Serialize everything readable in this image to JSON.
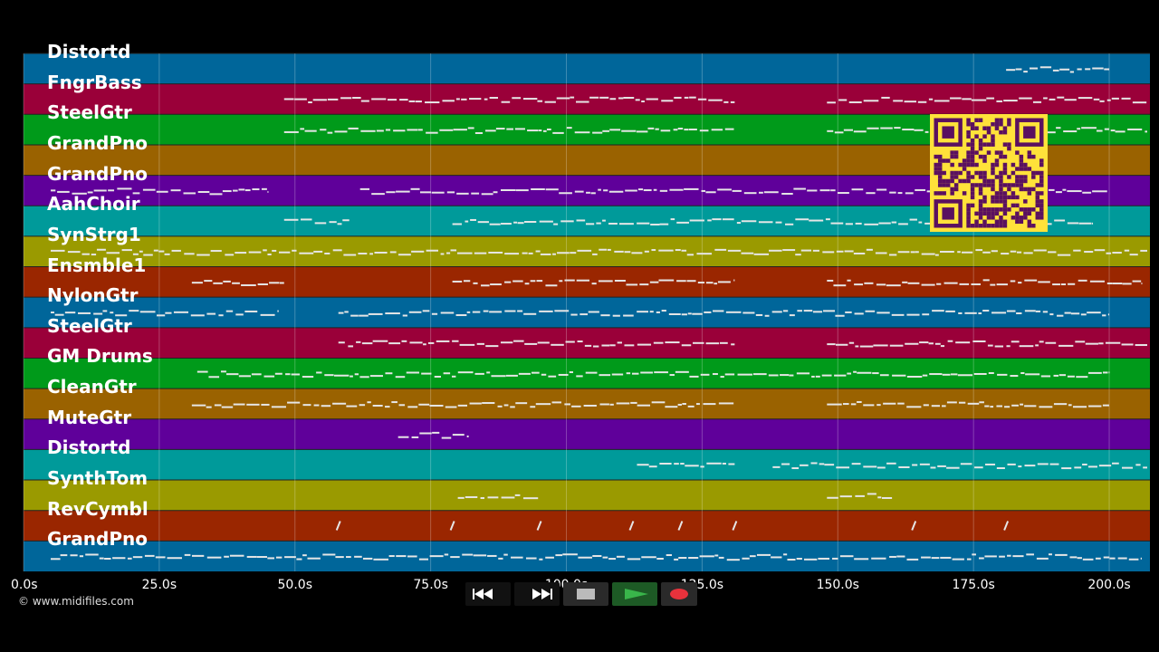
{
  "tracks": [
    {
      "name": "Distortd",
      "color": "#00669a"
    },
    {
      "name": "FngrBass",
      "color": "#9a0039"
    },
    {
      "name": "SteelGtr",
      "color": "#009a1a"
    },
    {
      "name": "GrandPno",
      "color": "#9a6200"
    },
    {
      "name": "GrandPno",
      "color": "#5f009a"
    },
    {
      "name": "AahChoir",
      "color": "#009a9a"
    },
    {
      "name": "SynStrg1",
      "color": "#9a9a00"
    },
    {
      "name": "Ensmble1",
      "color": "#9a2600"
    },
    {
      "name": "NylonGtr",
      "color": "#00669a"
    },
    {
      "name": "SteelGtr",
      "color": "#9a0039"
    },
    {
      "name": "GM Drums",
      "color": "#009a1a"
    },
    {
      "name": "CleanGtr",
      "color": "#9a6200"
    },
    {
      "name": "MuteGtr",
      "color": "#5f009a"
    },
    {
      "name": "Distortd",
      "color": "#009a9a"
    },
    {
      "name": "SynthTom",
      "color": "#9a9a00"
    },
    {
      "name": "RevCymbl",
      "color": "#9a2600"
    },
    {
      "name": "GrandPno",
      "color": "#00669a"
    }
  ],
  "time_axis": {
    "ticks": [
      "0.0s",
      "25.0s",
      "50.0s",
      "75.0s",
      "100.0s",
      "125.0s",
      "150.0s",
      "175.0s",
      "200.0s"
    ],
    "max_seconds": 207.5
  },
  "copyright": "© www.midifiles.com",
  "transport": {
    "rewind": "rewind-icon",
    "fast_forward": "fast-forward-icon",
    "stop": "stop-icon",
    "play": "play-icon",
    "record": "record-icon"
  },
  "colors": {
    "background": "#000000",
    "note": "#e6e6e6",
    "qr_bg": "#ffe23a",
    "qr_fg": "#5a1060",
    "play": "#39b54a",
    "record": "#e8323c"
  },
  "notes": [
    {
      "track": 0,
      "segments": [
        [
          181,
          200
        ]
      ]
    },
    {
      "track": 1,
      "segments": [
        [
          48,
          131
        ],
        [
          148,
          207
        ]
      ]
    },
    {
      "track": 2,
      "segments": [
        [
          48,
          131
        ],
        [
          148,
          207
        ]
      ]
    },
    {
      "track": 3,
      "segments": []
    },
    {
      "track": 4,
      "segments": [
        [
          5,
          45
        ],
        [
          62,
          200
        ]
      ]
    },
    {
      "track": 5,
      "segments": [
        [
          48,
          60
        ],
        [
          79,
          197
        ]
      ]
    },
    {
      "track": 6,
      "segments": [
        [
          5,
          207
        ]
      ]
    },
    {
      "track": 7,
      "segments": [
        [
          31,
          48
        ],
        [
          79,
          131
        ],
        [
          148,
          206
        ]
      ]
    },
    {
      "track": 8,
      "segments": [
        [
          5,
          47
        ],
        [
          58,
          200
        ]
      ]
    },
    {
      "track": 9,
      "segments": [
        [
          58,
          131
        ],
        [
          148,
          207
        ]
      ]
    },
    {
      "track": 10,
      "segments": [
        [
          32,
          200
        ]
      ]
    },
    {
      "track": 11,
      "segments": [
        [
          31,
          131
        ],
        [
          148,
          200
        ]
      ]
    },
    {
      "track": 12,
      "segments": [
        [
          69,
          82
        ]
      ]
    },
    {
      "track": 13,
      "segments": [
        [
          113,
          131
        ],
        [
          138,
          207
        ]
      ]
    },
    {
      "track": 14,
      "segments": [
        [
          80,
          95
        ],
        [
          148,
          160
        ]
      ]
    },
    {
      "track": 15,
      "segments": []
    },
    {
      "track": 16,
      "segments": [
        [
          5,
          206
        ]
      ]
    }
  ],
  "cymbal_hits": [
    58,
    79,
    95,
    112,
    121,
    131,
    164,
    181
  ]
}
